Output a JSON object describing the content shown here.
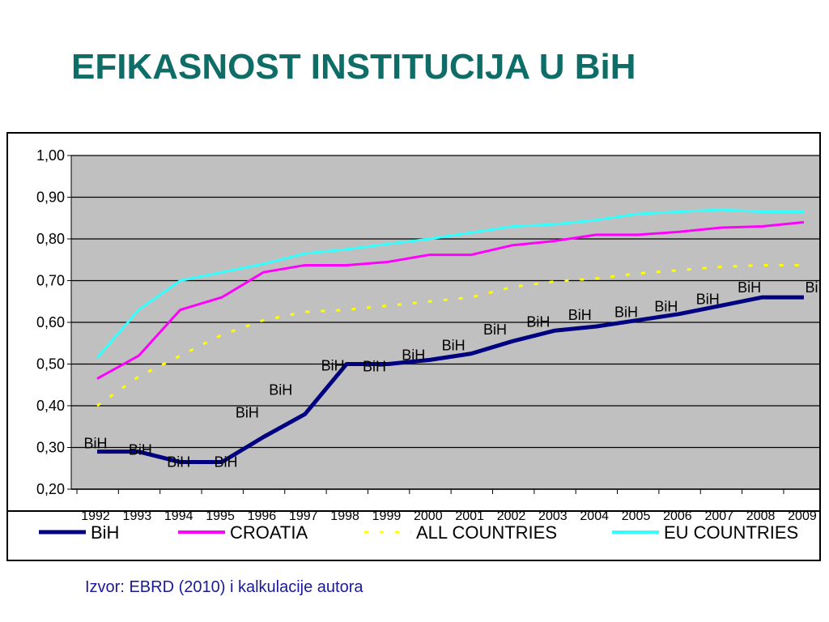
{
  "slide": {
    "title": "EFIKASNOST INSTITUCIJA U BiH",
    "source": "Izvor: EBRD (2010) i kalkulacije autora"
  },
  "chart_data": {
    "type": "line",
    "x": [
      "1992",
      "1993",
      "1994",
      "1995",
      "1996",
      "1997",
      "1998",
      "1999",
      "2000",
      "2001",
      "2002",
      "2003",
      "2004",
      "2005",
      "2006",
      "2007",
      "2008",
      "2009"
    ],
    "ylim": [
      0.2,
      1.0
    ],
    "yticks": [
      "0,20",
      "0,30",
      "0,40",
      "0,50",
      "0,60",
      "0,70",
      "0,80",
      "0,90",
      "1,00"
    ],
    "grid": true,
    "legend_position": "bottom",
    "plot_background": "#c0c0c0",
    "data_label_text": "BiH",
    "series": [
      {
        "name": "BiH",
        "color": "#000080",
        "style": "solid-thick",
        "show_labels": true,
        "values": [
          0.29,
          0.29,
          0.265,
          0.265,
          0.325,
          0.38,
          0.5,
          0.5,
          0.51,
          0.525,
          0.555,
          0.58,
          0.59,
          0.605,
          0.62,
          0.64,
          0.66,
          0.66
        ]
      },
      {
        "name": "CROATIA",
        "color": "#ff00ff",
        "style": "solid",
        "values": [
          0.465,
          0.52,
          0.63,
          0.66,
          0.72,
          0.737,
          0.737,
          0.745,
          0.762,
          0.762,
          0.785,
          0.795,
          0.81,
          0.81,
          0.817,
          0.827,
          0.83,
          0.84
        ]
      },
      {
        "name": "ALL COUNTRIES",
        "color": "#ffff00",
        "style": "dotted",
        "values": [
          0.4,
          0.47,
          0.52,
          0.57,
          0.605,
          0.625,
          0.63,
          0.64,
          0.65,
          0.66,
          0.685,
          0.698,
          0.705,
          0.717,
          0.725,
          0.733,
          0.737,
          0.737
        ]
      },
      {
        "name": "EU COUNTRIES",
        "color": "#33ffff",
        "style": "solid",
        "values": [
          0.515,
          0.63,
          0.7,
          0.72,
          0.74,
          0.765,
          0.775,
          0.788,
          0.8,
          0.815,
          0.83,
          0.835,
          0.845,
          0.86,
          0.865,
          0.87,
          0.865,
          0.865
        ]
      }
    ]
  }
}
